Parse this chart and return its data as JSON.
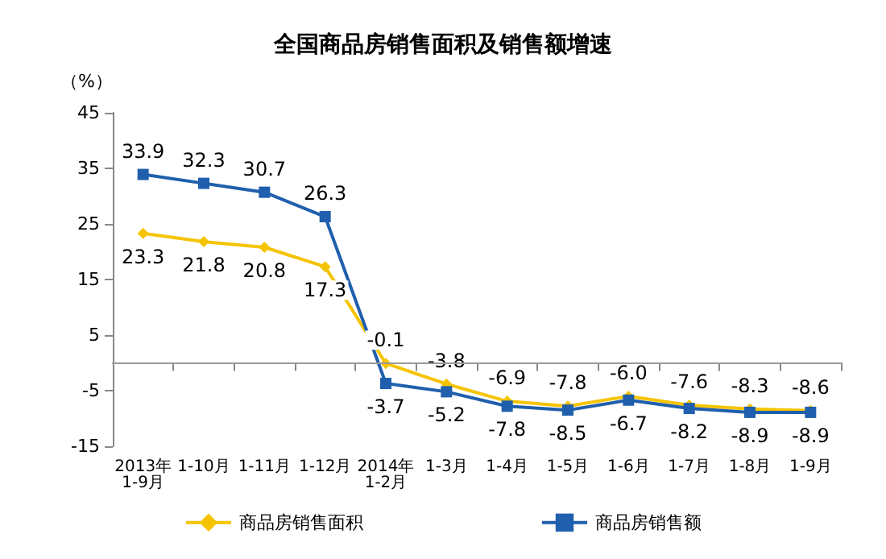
{
  "chart_data": {
    "type": "line",
    "title": "全国商品房销售面积及销售额增速",
    "ylabel": "（%）",
    "categories": [
      "2013年\n1-9月",
      "1-10月",
      "1-11月",
      "1-12月",
      "2014年\n1-2月",
      "1-3月",
      "1-4月",
      "1-5月",
      "1-6月",
      "1-7月",
      "1-8月",
      "1-9月"
    ],
    "series": [
      {
        "name": "商品房销售面积",
        "color": "#f5c400",
        "marker": "diamond",
        "values": [
          23.3,
          21.8,
          20.8,
          17.3,
          -0.1,
          -3.8,
          -6.9,
          -7.8,
          -6.0,
          -7.6,
          -8.3,
          -8.6
        ],
        "value_labels": [
          "23.3",
          "21.8",
          "20.8",
          "17.3",
          "-0.1",
          "-3.8",
          "-6.9",
          "-7.8",
          "-6.0",
          "-7.6",
          "-8.3",
          "-8.6"
        ]
      },
      {
        "name": "商品房销售额",
        "color": "#1f5fad",
        "marker": "square",
        "values": [
          33.9,
          32.3,
          30.7,
          26.3,
          -3.7,
          -5.2,
          -7.8,
          -8.5,
          -6.7,
          -8.2,
          -8.9,
          -8.9
        ],
        "value_labels": [
          "33.9",
          "32.3",
          "30.7",
          "26.3",
          "-3.7",
          "-5.2",
          "-7.8",
          "-8.5",
          "-6.7",
          "-8.2",
          "-8.9",
          "-8.9"
        ]
      }
    ],
    "ylim": [
      -15,
      45
    ],
    "yticks": [
      -15,
      -5,
      5,
      15,
      25,
      35,
      45
    ],
    "grid": false,
    "legend": "bottom",
    "line_style": "solid",
    "ref_lines": [
      {
        "axis": "y",
        "value": 0,
        "color": "#999999"
      }
    ]
  }
}
